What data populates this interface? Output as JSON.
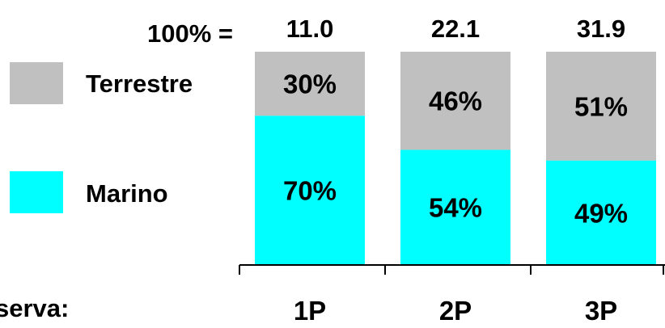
{
  "total_prefix": "100% =",
  "cut_label": "serva:",
  "chart_data": {
    "type": "bar",
    "stacked": true,
    "normalized": true,
    "categories": [
      "1P",
      "2P",
      "3P"
    ],
    "totals": [
      "11.0",
      "22.1",
      "31.9"
    ],
    "series": [
      {
        "name": "Marino",
        "values": [
          70,
          54,
          49
        ],
        "labels": [
          "70%",
          "54%",
          "49%"
        ],
        "color": "#00ffff"
      },
      {
        "name": "Terrestre",
        "values": [
          30,
          46,
          51
        ],
        "labels": [
          "30%",
          "46%",
          "51%"
        ],
        "color": "#c0c0c0"
      }
    ],
    "ylim": [
      0,
      100
    ],
    "grid": false,
    "legend": "left"
  }
}
